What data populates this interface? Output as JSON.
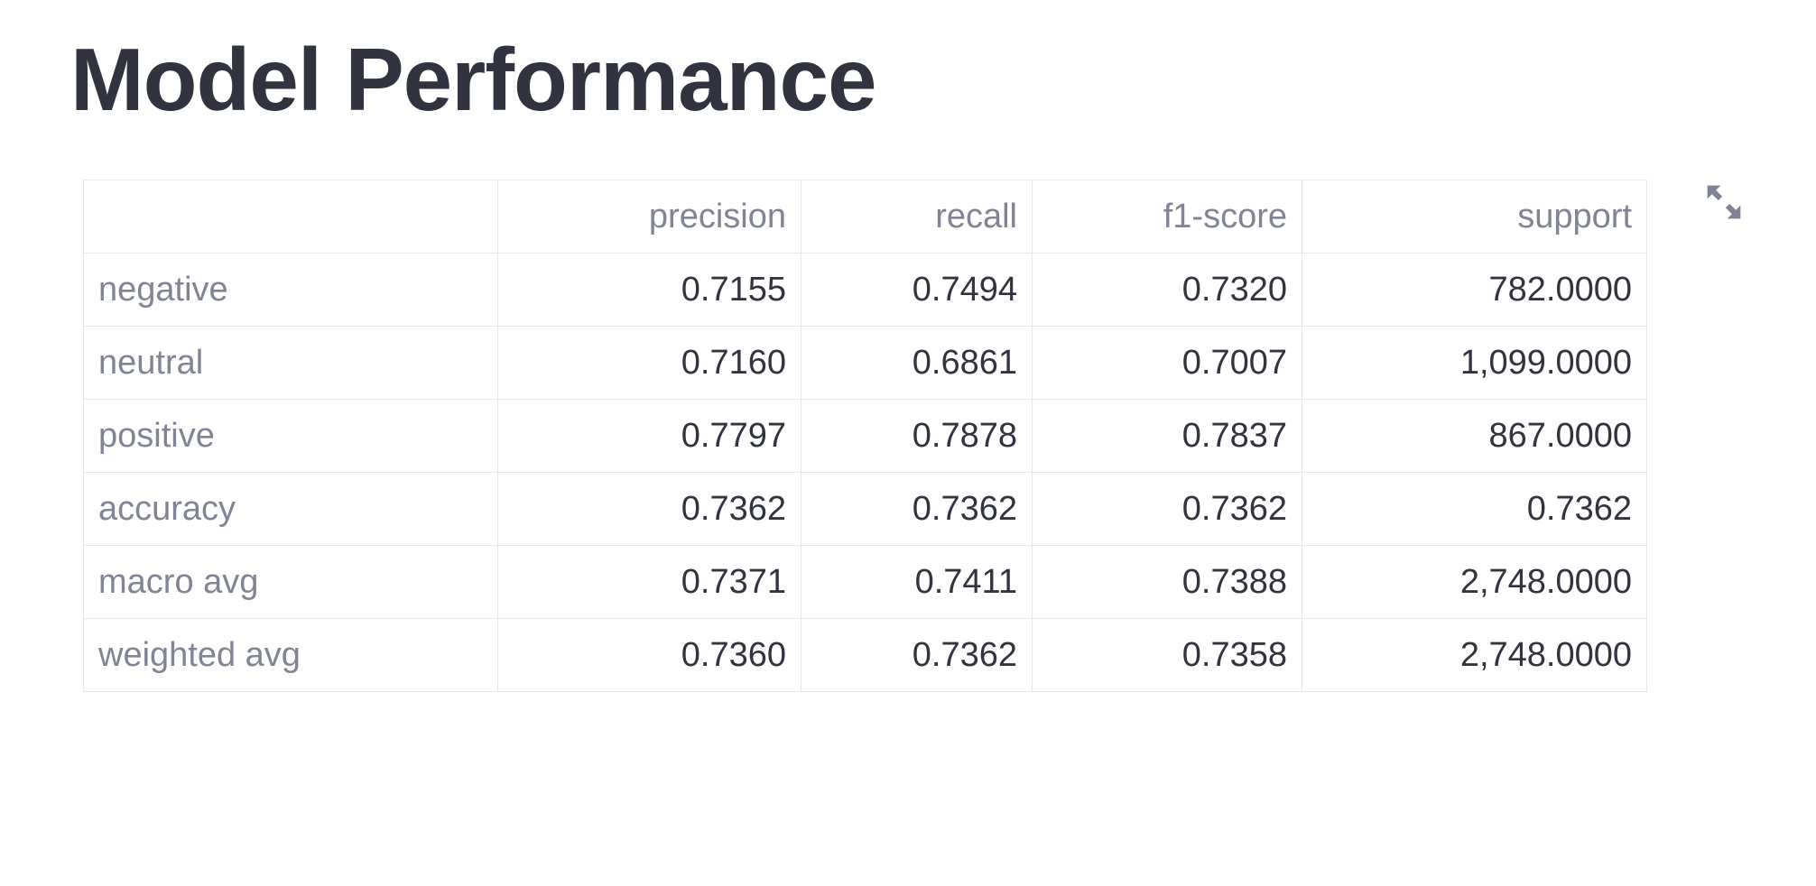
{
  "page": {
    "title": "Model Performance"
  },
  "report_table": {
    "columns": [
      "",
      "precision",
      "recall",
      "f1-score",
      "support"
    ],
    "rows": [
      {
        "label": "negative",
        "precision": "0.7155",
        "recall": "0.7494",
        "f1": "0.7320",
        "support": "782.0000"
      },
      {
        "label": "neutral",
        "precision": "0.7160",
        "recall": "0.6861",
        "f1": "0.7007",
        "support": "1,099.0000"
      },
      {
        "label": "positive",
        "precision": "0.7797",
        "recall": "0.7878",
        "f1": "0.7837",
        "support": "867.0000"
      },
      {
        "label": "accuracy",
        "precision": "0.7362",
        "recall": "0.7362",
        "f1": "0.7362",
        "support": "0.7362"
      },
      {
        "label": "macro avg",
        "precision": "0.7371",
        "recall": "0.7411",
        "f1": "0.7388",
        "support": "2,748.0000"
      },
      {
        "label": "weighted avg",
        "precision": "0.7360",
        "recall": "0.7362",
        "f1": "0.7358",
        "support": "2,748.0000"
      }
    ]
  },
  "toolbar": {
    "fullscreen_icon": "expand-arrows-icon",
    "icon_color": "#808495"
  },
  "colors": {
    "text": "#31333f",
    "muted_text": "#808495",
    "border": "#e6e6eb",
    "background": "#ffffff"
  }
}
